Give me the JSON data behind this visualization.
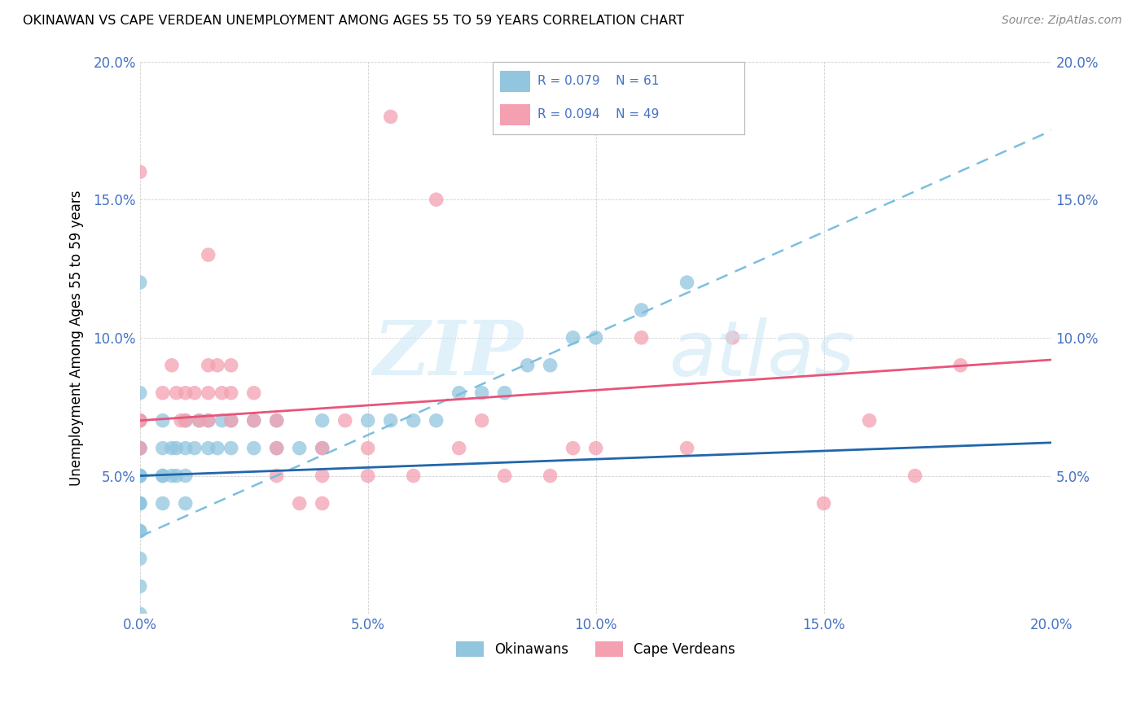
{
  "title": "OKINAWAN VS CAPE VERDEAN UNEMPLOYMENT AMONG AGES 55 TO 59 YEARS CORRELATION CHART",
  "source": "Source: ZipAtlas.com",
  "ylabel": "Unemployment Among Ages 55 to 59 years",
  "xlim": [
    0.0,
    0.2
  ],
  "ylim": [
    0.0,
    0.2
  ],
  "xticks": [
    0.0,
    0.05,
    0.1,
    0.15,
    0.2
  ],
  "yticks": [
    0.0,
    0.05,
    0.1,
    0.15,
    0.2
  ],
  "xticklabels": [
    "0.0%",
    "5.0%",
    "10.0%",
    "15.0%",
    "20.0%"
  ],
  "yticklabels": [
    "",
    "5.0%",
    "10.0%",
    "15.0%",
    "20.0%"
  ],
  "okinawan_color": "#92C5DE",
  "cape_verdean_color": "#F4A0B0",
  "trend_blue_color": "#6BAED6",
  "trend_pink_color": "#E8547A",
  "okinawan_R": 0.079,
  "okinawan_N": 61,
  "cape_verdean_R": 0.094,
  "cape_verdean_N": 49,
  "legend_text_color": "#4472C4",
  "okinawan_x": [
    0.0,
    0.0,
    0.0,
    0.0,
    0.0,
    0.0,
    0.0,
    0.0,
    0.0,
    0.0,
    0.0,
    0.0,
    0.0,
    0.0,
    0.0,
    0.0,
    0.0,
    0.0,
    0.0,
    0.0,
    0.005,
    0.005,
    0.005,
    0.005,
    0.005,
    0.007,
    0.007,
    0.008,
    0.008,
    0.01,
    0.01,
    0.01,
    0.01,
    0.012,
    0.013,
    0.015,
    0.015,
    0.017,
    0.018,
    0.02,
    0.02,
    0.025,
    0.025,
    0.03,
    0.03,
    0.035,
    0.04,
    0.04,
    0.05,
    0.055,
    0.06,
    0.065,
    0.07,
    0.075,
    0.08,
    0.085,
    0.09,
    0.095,
    0.1,
    0.11,
    0.12
  ],
  "okinawan_y": [
    0.0,
    0.01,
    0.02,
    0.03,
    0.03,
    0.04,
    0.04,
    0.04,
    0.05,
    0.05,
    0.05,
    0.05,
    0.06,
    0.06,
    0.06,
    0.06,
    0.07,
    0.07,
    0.08,
    0.12,
    0.04,
    0.05,
    0.05,
    0.06,
    0.07,
    0.05,
    0.06,
    0.05,
    0.06,
    0.04,
    0.05,
    0.06,
    0.07,
    0.06,
    0.07,
    0.06,
    0.07,
    0.06,
    0.07,
    0.06,
    0.07,
    0.06,
    0.07,
    0.06,
    0.07,
    0.06,
    0.06,
    0.07,
    0.07,
    0.07,
    0.07,
    0.07,
    0.08,
    0.08,
    0.08,
    0.09,
    0.09,
    0.1,
    0.1,
    0.11,
    0.12
  ],
  "cape_verdean_x": [
    0.0,
    0.0,
    0.0,
    0.0,
    0.005,
    0.007,
    0.008,
    0.009,
    0.01,
    0.01,
    0.012,
    0.013,
    0.015,
    0.015,
    0.015,
    0.015,
    0.017,
    0.018,
    0.02,
    0.02,
    0.02,
    0.025,
    0.025,
    0.03,
    0.03,
    0.03,
    0.035,
    0.04,
    0.04,
    0.04,
    0.045,
    0.05,
    0.05,
    0.055,
    0.06,
    0.065,
    0.07,
    0.075,
    0.08,
    0.09,
    0.095,
    0.1,
    0.11,
    0.12,
    0.13,
    0.15,
    0.16,
    0.17,
    0.18
  ],
  "cape_verdean_y": [
    0.06,
    0.07,
    0.07,
    0.16,
    0.08,
    0.09,
    0.08,
    0.07,
    0.07,
    0.08,
    0.08,
    0.07,
    0.07,
    0.08,
    0.09,
    0.13,
    0.09,
    0.08,
    0.07,
    0.08,
    0.09,
    0.07,
    0.08,
    0.05,
    0.06,
    0.07,
    0.04,
    0.04,
    0.05,
    0.06,
    0.07,
    0.05,
    0.06,
    0.18,
    0.05,
    0.15,
    0.06,
    0.07,
    0.05,
    0.05,
    0.06,
    0.06,
    0.1,
    0.06,
    0.1,
    0.04,
    0.07,
    0.05,
    0.09
  ]
}
